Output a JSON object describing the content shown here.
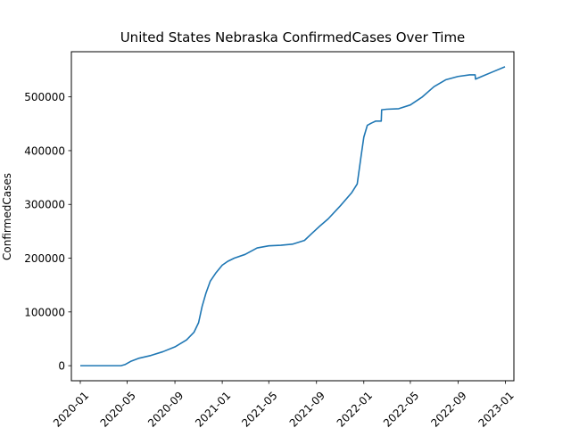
{
  "chart_data": {
    "type": "line",
    "title": "United States Nebraska ConfirmedCases Over Time",
    "xlabel": "",
    "ylabel": "ConfirmedCases",
    "x_tick_labels": [
      "2020-01",
      "2020-05",
      "2020-09",
      "2021-01",
      "2021-05",
      "2021-09",
      "2022-01",
      "2022-05",
      "2022-09",
      "2023-01"
    ],
    "y_tick_labels": [
      "0",
      "100000",
      "200000",
      "300000",
      "400000",
      "500000"
    ],
    "y_ticks": [
      0,
      100000,
      200000,
      300000,
      400000,
      500000
    ],
    "xlim": [
      "2019-12-09",
      "2023-01-23"
    ],
    "ylim": [
      -28000,
      584000
    ],
    "grid": false,
    "line_color": "#1f77b4",
    "series": [
      {
        "x": [
          "2020-01-01",
          "2020-03-15",
          "2020-04-15",
          "2020-04-25",
          "2020-05-10",
          "2020-06-01",
          "2020-07-01",
          "2020-08-01",
          "2020-09-01",
          "2020-10-01",
          "2020-10-20",
          "2020-11-01",
          "2020-11-10",
          "2020-11-20",
          "2020-12-01",
          "2020-12-15",
          "2021-01-01",
          "2021-01-15",
          "2021-02-01",
          "2021-03-01",
          "2021-04-01",
          "2021-05-01",
          "2021-06-01",
          "2021-07-01",
          "2021-08-01",
          "2021-08-20",
          "2021-09-10",
          "2021-10-01",
          "2021-11-01",
          "2021-12-01",
          "2021-12-15",
          "2021-12-25",
          "2022-01-01",
          "2022-01-10",
          "2022-01-20",
          "2022-02-01",
          "2022-02-15",
          "2022-02-16",
          "2022-03-01",
          "2022-04-01",
          "2022-05-01",
          "2022-06-01",
          "2022-07-01",
          "2022-08-01",
          "2022-09-01",
          "2022-10-01",
          "2022-10-15",
          "2022-10-16",
          "2022-11-01",
          "2022-12-01",
          "2022-12-31"
        ],
        "y": [
          0,
          0,
          0,
          2000,
          8000,
          14000,
          19000,
          26000,
          35000,
          48000,
          62000,
          80000,
          110000,
          135000,
          157000,
          172000,
          187000,
          194000,
          200000,
          207000,
          219000,
          223000,
          224000,
          226000,
          233000,
          246000,
          260000,
          273000,
          297000,
          322000,
          338000,
          390000,
          425000,
          447000,
          451000,
          455000,
          455000,
          476000,
          477000,
          478000,
          485000,
          500000,
          519000,
          532000,
          538000,
          541000,
          541000,
          533000,
          538000,
          547000,
          556000
        ]
      }
    ]
  }
}
